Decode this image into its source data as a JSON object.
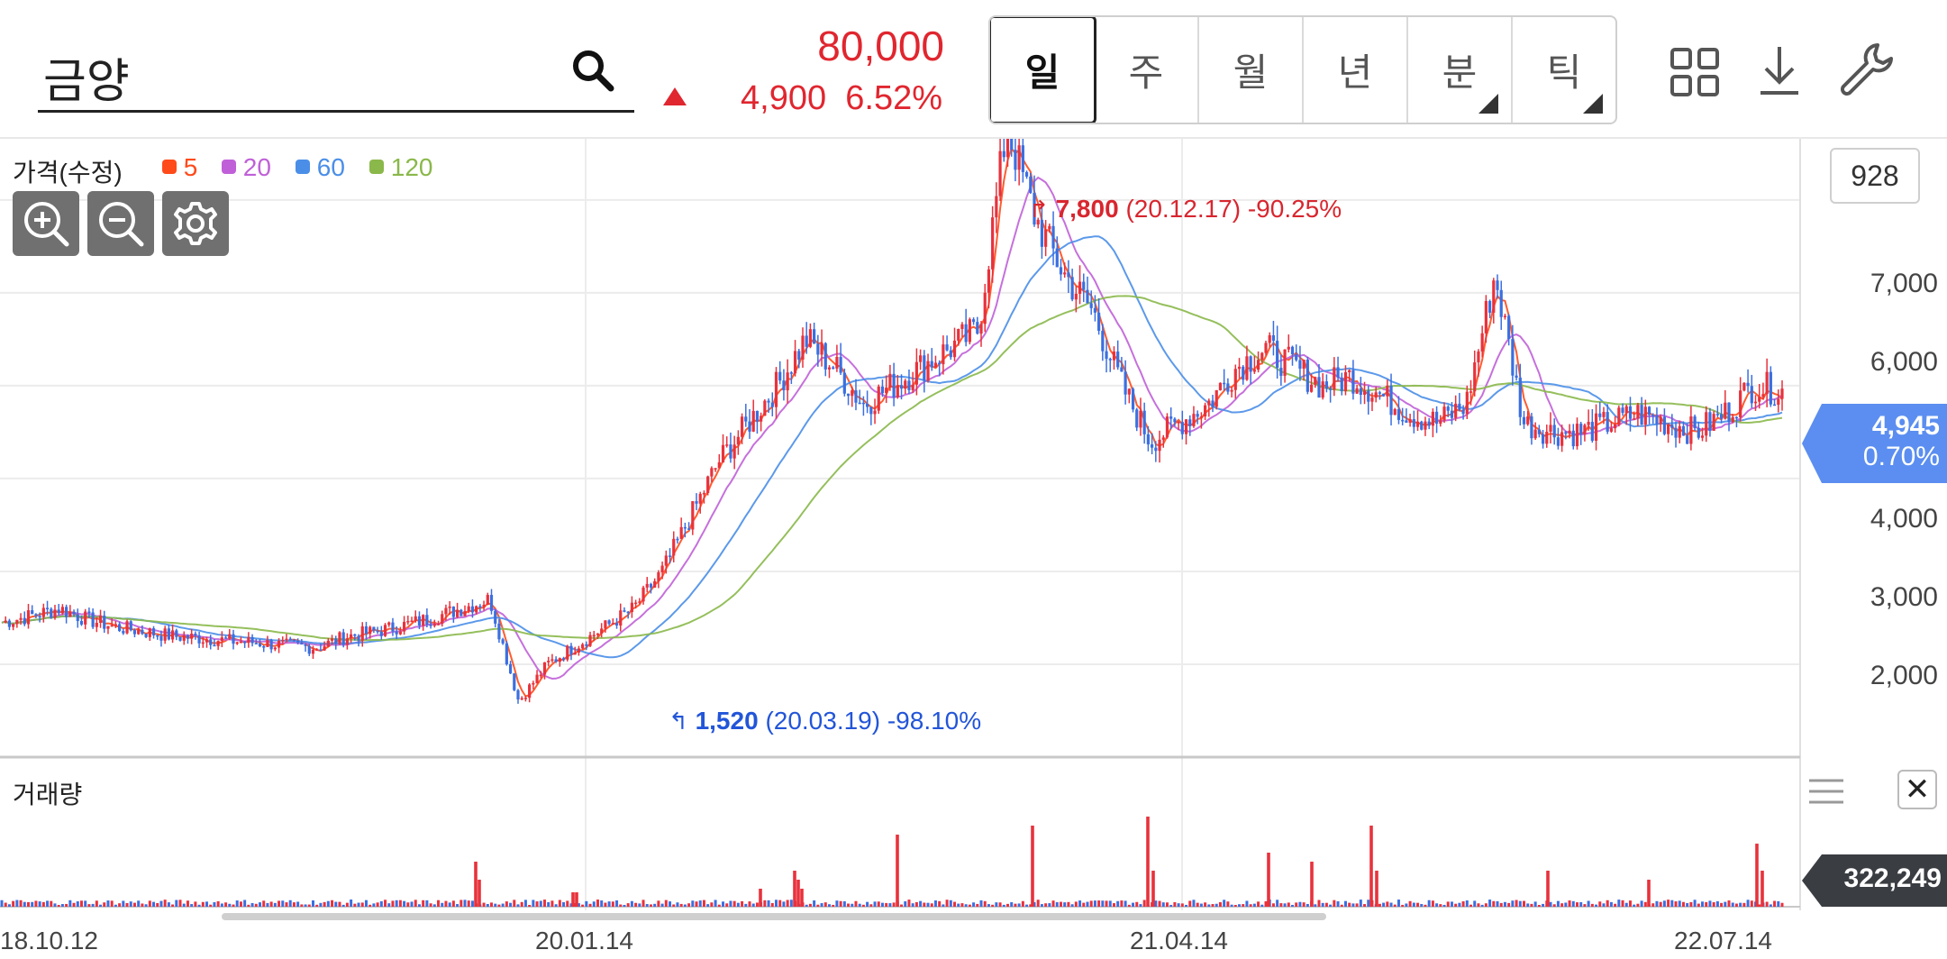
{
  "search": {
    "value": "금양"
  },
  "quote": {
    "price": "80,000",
    "change": "4,900",
    "change_pct": "6.52%",
    "direction": "up",
    "color": "#e0262f"
  },
  "periods": [
    {
      "label": "일",
      "active": true,
      "has_menu": false
    },
    {
      "label": "주",
      "active": false,
      "has_menu": false
    },
    {
      "label": "월",
      "active": false,
      "has_menu": false
    },
    {
      "label": "년",
      "active": false,
      "has_menu": false
    },
    {
      "label": "분",
      "active": false,
      "has_menu": true
    },
    {
      "label": "틱",
      "active": false,
      "has_menu": true
    }
  ],
  "toolbar_icons": [
    "grid-icon",
    "download-icon",
    "wrench-icon"
  ],
  "price_panel": {
    "label": "가격(수정)",
    "ma_legend": [
      {
        "label": "5",
        "color": "#ff4a1a"
      },
      {
        "label": "20",
        "color": "#c060d8"
      },
      {
        "label": "60",
        "color": "#4a8ee8"
      },
      {
        "label": "120",
        "color": "#8ab84a"
      }
    ],
    "zoom_buttons": [
      "zoom-in-icon",
      "zoom-out-icon",
      "gear-icon"
    ],
    "axis_box": "928",
    "y_ticks": [
      "7,000",
      "6,000",
      "4,000",
      "3,000",
      "2,000"
    ],
    "current_price": "4,945",
    "current_pct": "0.70%",
    "high_annotation": {
      "value": "7,800",
      "detail": "(20.12.17) -90.25%",
      "color": "#d8262f"
    },
    "low_annotation": {
      "value": "1,520",
      "detail": "(20.03.19) -98.10%",
      "color": "#2255d8"
    }
  },
  "volume_panel": {
    "label": "거래량",
    "current_volume": "322,249"
  },
  "x_ticks": [
    "18.10.12",
    "20.01.14",
    "21.04.14",
    "22.07.14"
  ],
  "chart_data": {
    "type": "line",
    "series": [
      {
        "values": [
          2450,
          2520,
          2600,
          2480,
          2400,
          2350,
          2300,
          2280,
          2250,
          2230,
          2200,
          2180,
          2300,
          2350,
          2420,
          2500,
          2600,
          2700,
          1600,
          2000,
          2200,
          2400,
          2600,
          3000,
          3600,
          4200,
          4600,
          5000,
          5500,
          5200,
          4800,
          5000,
          5200,
          5400,
          5600,
          7800,
          6800,
          6200,
          5800,
          5000,
          4400,
          4600,
          4800,
          5200,
          5400,
          5200,
          5000,
          5100,
          4900,
          4700,
          4600,
          4800,
          6200,
          4600,
          4500,
          4500,
          4600,
          4700,
          4600,
          4500,
          4700,
          5000,
          4945
        ]
      }
    ],
    "ylim": [
      1000,
      7600
    ],
    "grid": true
  }
}
